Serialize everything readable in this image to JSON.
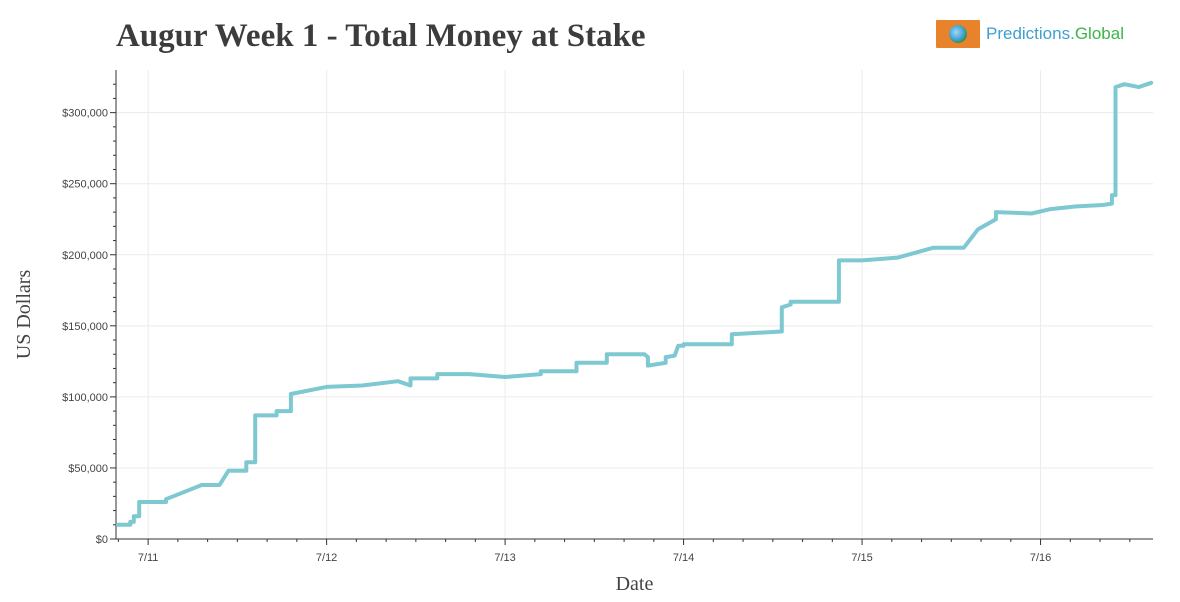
{
  "title": "Augur Week 1 - Total Money at Stake",
  "brand": {
    "name": "Predictions",
    "tld": ".Global",
    "logo_icon": "globe-icon"
  },
  "colors": {
    "line": "#7ec8d1",
    "title": "#3c3c3c",
    "grid": "#ebebeb",
    "brand_box": "#e8822b"
  },
  "chart_data": {
    "type": "line",
    "title": "Augur Week 1 - Total Money at Stake",
    "xlabel": "Date",
    "ylabel": "US Dollars",
    "x_ticks": [
      "7/11",
      "7/12",
      "7/13",
      "7/14",
      "7/15",
      "7/16"
    ],
    "y_ticks": [
      "$0",
      "$50,000",
      "$100,000",
      "$150,000",
      "$200,000",
      "$250,000",
      "$300,000"
    ],
    "ylim": [
      0,
      330000
    ],
    "xlim_days": [
      -0.18,
      5.63
    ],
    "grid": true,
    "legend": "none",
    "series": [
      {
        "x_days": [
          -0.17,
          -0.1,
          -0.1,
          -0.08,
          -0.08,
          -0.05,
          -0.05,
          0.1,
          0.1,
          0.22,
          0.3,
          0.4,
          0.45,
          0.55,
          0.55,
          0.6,
          0.6,
          0.72,
          0.72,
          0.8,
          0.8,
          1.0,
          1.2,
          1.4,
          1.47,
          1.47,
          1.62,
          1.62,
          1.8,
          2.0,
          2.2,
          2.2,
          2.4,
          2.4,
          2.57,
          2.57,
          2.78,
          2.8,
          2.8,
          2.9,
          2.9,
          2.95,
          2.97,
          3.0,
          3.0,
          3.2,
          3.27,
          3.27,
          3.55,
          3.55,
          3.6,
          3.6,
          3.7,
          3.8,
          3.87,
          3.87,
          4.0,
          4.2,
          4.4,
          4.57,
          4.65,
          4.65,
          4.75,
          4.75,
          4.95,
          5.05,
          5.2,
          5.35,
          5.4,
          5.4,
          5.42,
          5.42,
          5.47,
          5.55,
          5.62
        ],
        "values": [
          10000,
          10000,
          12000,
          12000,
          16000,
          16000,
          26000,
          26000,
          28000,
          34000,
          38000,
          38000,
          48000,
          48000,
          54000,
          54000,
          87000,
          87000,
          90000,
          90000,
          102000,
          107000,
          108000,
          111000,
          108000,
          113000,
          113000,
          116000,
          116000,
          114000,
          116000,
          118000,
          118000,
          124000,
          124000,
          130000,
          130000,
          128000,
          122000,
          124000,
          128000,
          129000,
          136000,
          136000,
          137000,
          137000,
          137000,
          144000,
          146000,
          163000,
          165000,
          167000,
          167000,
          167000,
          167000,
          196000,
          196000,
          198000,
          205000,
          205000,
          218000,
          218000,
          225000,
          230000,
          229000,
          232000,
          234000,
          235000,
          236000,
          242000,
          242000,
          318000,
          320000,
          318000,
          321000
        ]
      }
    ]
  }
}
